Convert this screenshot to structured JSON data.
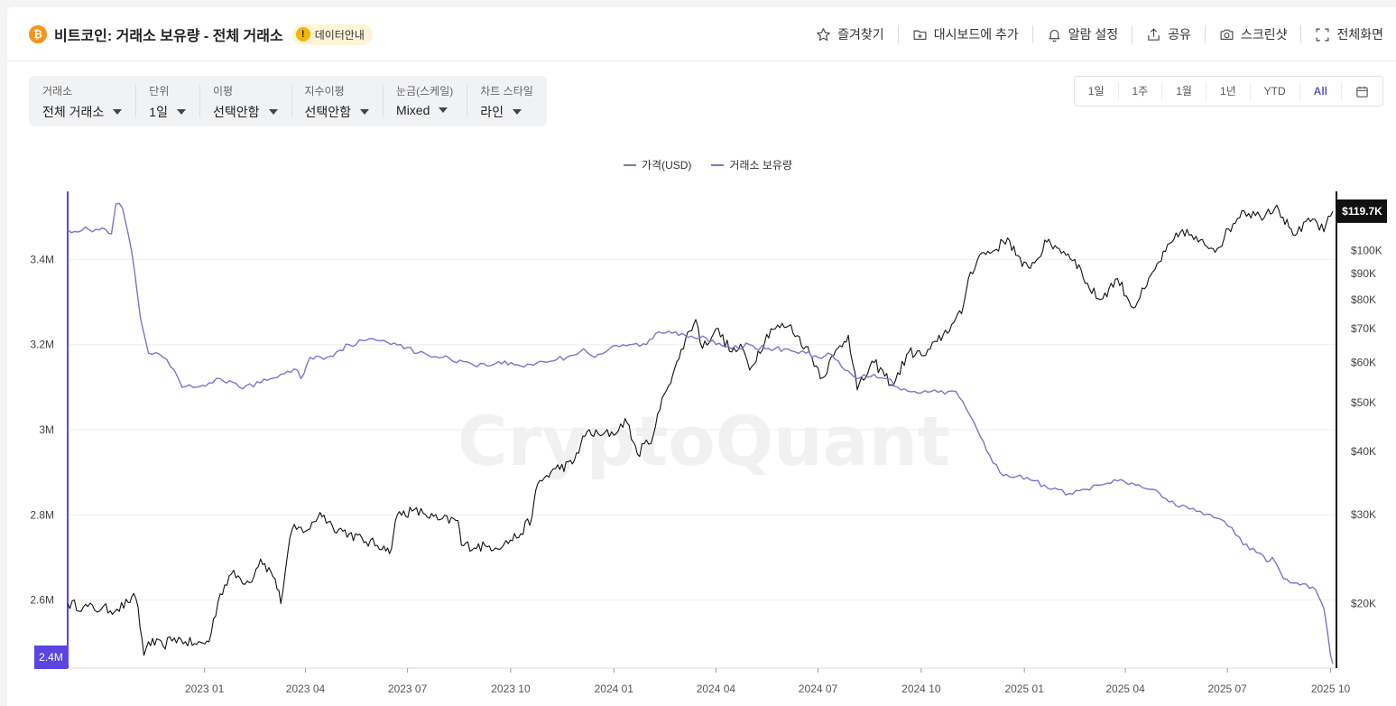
{
  "header": {
    "coin_icon": "bitcoin-icon",
    "title": "비트코인: 거래소 보유량 - 전체 거래소",
    "data_guide_label": "데이터안내",
    "actions": [
      {
        "label": "즐겨찾기",
        "icon": "star-icon"
      },
      {
        "label": "대시보드에 추가",
        "icon": "folder-plus-icon"
      },
      {
        "label": "알람 설정",
        "icon": "bell-icon"
      },
      {
        "label": "공유",
        "icon": "share-icon"
      },
      {
        "label": "스크린샷",
        "icon": "camera-icon"
      },
      {
        "label": "전체화면",
        "icon": "fullscreen-icon"
      }
    ]
  },
  "controls": [
    {
      "label": "거래소",
      "value": "전체 거래소"
    },
    {
      "label": "단위",
      "value": "1일"
    },
    {
      "label": "이평",
      "value": "선택안함"
    },
    {
      "label": "지수이평",
      "value": "선택안함"
    },
    {
      "label": "눈금(스케일)",
      "value": "Mixed"
    },
    {
      "label": "차트 스타일",
      "value": "라인"
    }
  ],
  "ranges": {
    "items": [
      "1일",
      "1주",
      "1월",
      "1년",
      "YTD",
      "All"
    ],
    "active": "All",
    "calendar_icon": "calendar-icon"
  },
  "legend": [
    {
      "label": "가격(USD)",
      "color": "#7b7f96"
    },
    {
      "label": "거래소 보유량",
      "color": "#7b74cc"
    }
  ],
  "watermark": "CryptoQuant",
  "colors": {
    "price": "#111111",
    "reserve": "#7b74cc",
    "left_axis": "#5b45e0",
    "right_axis": "#111111",
    "active_range": "#5b57d1"
  },
  "chart_data": {
    "type": "line",
    "x_tick_labels": [
      "2023 01",
      "2023 04",
      "2023 07",
      "2023 10",
      "2024 01",
      "2024 04",
      "2024 07",
      "2024 10",
      "2025 01",
      "2025 04",
      "2025 07",
      "2025 10"
    ],
    "x_range": [
      "2022-09-01",
      "2025-10-03"
    ],
    "left_axis": {
      "scale": "linear",
      "ticks": [
        "2.6M",
        "2.8M",
        "3M",
        "3.2M",
        "3.4M"
      ],
      "tick_values": [
        2600000,
        2800000,
        3000000,
        3200000,
        3400000
      ],
      "range": [
        2440000,
        3560000
      ],
      "current_label": "2.4M"
    },
    "right_axis": {
      "scale": "log",
      "ticks": [
        "$20K",
        "$30K",
        "$40K",
        "$50K",
        "$60K",
        "$70K",
        "$80K",
        "$90K",
        "$100K"
      ],
      "tick_values": [
        20000,
        30000,
        40000,
        50000,
        60000,
        70000,
        80000,
        90000,
        100000
      ],
      "range": [
        14900,
        131000
      ],
      "current_label": "$119.7K"
    },
    "series": [
      {
        "name": "거래소 보유량",
        "axis": "left",
        "points": [
          [
            "2022-09-01",
            3470000
          ],
          [
            "2022-09-20",
            3470000
          ],
          [
            "2022-10-05",
            3470000
          ],
          [
            "2022-10-10",
            3460000
          ],
          [
            "2022-10-14",
            3530000
          ],
          [
            "2022-10-20",
            3520000
          ],
          [
            "2022-10-28",
            3420000
          ],
          [
            "2022-11-05",
            3260000
          ],
          [
            "2022-11-12",
            3180000
          ],
          [
            "2022-11-25",
            3170000
          ],
          [
            "2022-12-05",
            3140000
          ],
          [
            "2022-12-12",
            3100000
          ],
          [
            "2022-12-25",
            3100000
          ],
          [
            "2023-01-05",
            3110000
          ],
          [
            "2023-01-15",
            3120000
          ],
          [
            "2023-02-01",
            3100000
          ],
          [
            "2023-02-20",
            3110000
          ],
          [
            "2023-03-10",
            3130000
          ],
          [
            "2023-03-25",
            3140000
          ],
          [
            "2023-03-28",
            3120000
          ],
          [
            "2023-04-05",
            3170000
          ],
          [
            "2023-04-20",
            3170000
          ],
          [
            "2023-05-10",
            3200000
          ],
          [
            "2023-05-25",
            3210000
          ],
          [
            "2023-06-10",
            3210000
          ],
          [
            "2023-06-25",
            3200000
          ],
          [
            "2023-07-10",
            3180000
          ],
          [
            "2023-08-01",
            3170000
          ],
          [
            "2023-08-20",
            3160000
          ],
          [
            "2023-09-10",
            3150000
          ],
          [
            "2023-09-20",
            3160000
          ],
          [
            "2023-10-10",
            3150000
          ],
          [
            "2023-10-30",
            3160000
          ],
          [
            "2023-11-20",
            3170000
          ],
          [
            "2023-12-05",
            3190000
          ],
          [
            "2023-12-15",
            3170000
          ],
          [
            "2023-12-28",
            3190000
          ],
          [
            "2024-01-15",
            3200000
          ],
          [
            "2024-01-30",
            3200000
          ],
          [
            "2024-02-10",
            3230000
          ],
          [
            "2024-02-25",
            3230000
          ],
          [
            "2024-03-10",
            3220000
          ],
          [
            "2024-03-20",
            3220000
          ],
          [
            "2024-04-01",
            3200000
          ],
          [
            "2024-04-15",
            3190000
          ],
          [
            "2024-05-01",
            3200000
          ],
          [
            "2024-05-15",
            3190000
          ],
          [
            "2024-06-01",
            3190000
          ],
          [
            "2024-06-20",
            3180000
          ],
          [
            "2024-07-01",
            3170000
          ],
          [
            "2024-07-10",
            3180000
          ],
          [
            "2024-07-25",
            3140000
          ],
          [
            "2024-08-05",
            3120000
          ],
          [
            "2024-08-20",
            3130000
          ],
          [
            "2024-09-01",
            3120000
          ],
          [
            "2024-09-10",
            3100000
          ],
          [
            "2024-09-25",
            3090000
          ],
          [
            "2024-10-10",
            3090000
          ],
          [
            "2024-10-25",
            3090000
          ],
          [
            "2024-11-01",
            3090000
          ],
          [
            "2024-11-10",
            3050000
          ],
          [
            "2024-11-20",
            3000000
          ],
          [
            "2024-12-01",
            2940000
          ],
          [
            "2024-12-10",
            2900000
          ],
          [
            "2024-12-25",
            2890000
          ],
          [
            "2025-01-10",
            2880000
          ],
          [
            "2025-01-25",
            2860000
          ],
          [
            "2025-02-10",
            2850000
          ],
          [
            "2025-02-25",
            2860000
          ],
          [
            "2025-03-10",
            2870000
          ],
          [
            "2025-03-25",
            2880000
          ],
          [
            "2025-04-10",
            2870000
          ],
          [
            "2025-04-25",
            2860000
          ],
          [
            "2025-05-10",
            2830000
          ],
          [
            "2025-05-25",
            2820000
          ],
          [
            "2025-06-10",
            2800000
          ],
          [
            "2025-06-25",
            2790000
          ],
          [
            "2025-07-05",
            2770000
          ],
          [
            "2025-07-15",
            2730000
          ],
          [
            "2025-07-30",
            2710000
          ],
          [
            "2025-08-05",
            2690000
          ],
          [
            "2025-08-10",
            2700000
          ],
          [
            "2025-08-20",
            2650000
          ],
          [
            "2025-09-01",
            2640000
          ],
          [
            "2025-09-15",
            2630000
          ],
          [
            "2025-09-20",
            2610000
          ],
          [
            "2025-09-25",
            2580000
          ],
          [
            "2025-10-01",
            2470000
          ],
          [
            "2025-10-03",
            2450000
          ]
        ]
      },
      {
        "name": "가격(USD)",
        "axis": "right",
        "points": [
          [
            "2022-09-01",
            20000
          ],
          [
            "2022-09-15",
            19700
          ],
          [
            "2022-10-01",
            19500
          ],
          [
            "2022-10-15",
            19500
          ],
          [
            "2022-10-25",
            20100
          ],
          [
            "2022-10-28",
            20600
          ],
          [
            "2022-11-01",
            20400
          ],
          [
            "2022-11-08",
            15800
          ],
          [
            "2022-11-12",
            16800
          ],
          [
            "2022-11-25",
            16500
          ],
          [
            "2022-12-05",
            17100
          ],
          [
            "2022-12-15",
            16800
          ],
          [
            "2022-12-25",
            16600
          ],
          [
            "2023-01-05",
            16800
          ],
          [
            "2023-01-15",
            20900
          ],
          [
            "2023-01-25",
            22900
          ],
          [
            "2023-02-10",
            22000
          ],
          [
            "2023-02-20",
            24500
          ],
          [
            "2023-03-05",
            22400
          ],
          [
            "2023-03-10",
            20000
          ],
          [
            "2023-03-20",
            28000
          ],
          [
            "2023-04-05",
            28100
          ],
          [
            "2023-04-14",
            30300
          ],
          [
            "2023-04-25",
            28500
          ],
          [
            "2023-05-10",
            27500
          ],
          [
            "2023-05-25",
            26500
          ],
          [
            "2023-06-10",
            26000
          ],
          [
            "2023-06-15",
            25100
          ],
          [
            "2023-06-22",
            30000
          ],
          [
            "2023-07-05",
            30500
          ],
          [
            "2023-07-15",
            30200
          ],
          [
            "2023-07-28",
            29300
          ],
          [
            "2023-08-15",
            29200
          ],
          [
            "2023-08-18",
            26100
          ],
          [
            "2023-09-10",
            25900
          ],
          [
            "2023-09-25",
            26200
          ],
          [
            "2023-10-10",
            27500
          ],
          [
            "2023-10-20",
            29700
          ],
          [
            "2023-10-25",
            34500
          ],
          [
            "2023-11-10",
            37000
          ],
          [
            "2023-11-25",
            37800
          ],
          [
            "2023-12-08",
            43800
          ],
          [
            "2023-12-20",
            43000
          ],
          [
            "2024-01-05",
            44000
          ],
          [
            "2024-01-11",
            46500
          ],
          [
            "2024-01-22",
            39500
          ],
          [
            "2024-02-05",
            43000
          ],
          [
            "2024-02-15",
            52000
          ],
          [
            "2024-02-28",
            61000
          ],
          [
            "2024-03-05",
            67000
          ],
          [
            "2024-03-14",
            73000
          ],
          [
            "2024-03-20",
            64000
          ],
          [
            "2024-04-01",
            70000
          ],
          [
            "2024-04-15",
            63000
          ],
          [
            "2024-04-25",
            64000
          ],
          [
            "2024-05-01",
            58000
          ],
          [
            "2024-05-20",
            70000
          ],
          [
            "2024-06-05",
            71000
          ],
          [
            "2024-06-20",
            64500
          ],
          [
            "2024-07-05",
            56000
          ],
          [
            "2024-07-15",
            62000
          ],
          [
            "2024-07-28",
            68000
          ],
          [
            "2024-08-05",
            53000
          ],
          [
            "2024-08-20",
            60000
          ],
          [
            "2024-09-06",
            54000
          ],
          [
            "2024-09-20",
            63000
          ],
          [
            "2024-10-05",
            62000
          ],
          [
            "2024-10-15",
            66000
          ],
          [
            "2024-10-30",
            72000
          ],
          [
            "2024-11-06",
            75000
          ],
          [
            "2024-11-12",
            88000
          ],
          [
            "2024-11-22",
            98000
          ],
          [
            "2024-12-05",
            100000
          ],
          [
            "2024-12-17",
            106000
          ],
          [
            "2024-12-30",
            93000
          ],
          [
            "2025-01-10",
            94500
          ],
          [
            "2025-01-21",
            104000
          ],
          [
            "2025-02-01",
            101000
          ],
          [
            "2025-02-15",
            96000
          ],
          [
            "2025-02-28",
            84000
          ],
          [
            "2025-03-10",
            80000
          ],
          [
            "2025-03-25",
            88000
          ],
          [
            "2025-04-08",
            77000
          ],
          [
            "2025-04-20",
            85000
          ],
          [
            "2025-05-01",
            95000
          ],
          [
            "2025-05-22",
            110000
          ],
          [
            "2025-06-05",
            104000
          ],
          [
            "2025-06-22",
            101000
          ],
          [
            "2025-07-14",
            120000
          ],
          [
            "2025-07-30",
            117000
          ],
          [
            "2025-08-14",
            123000
          ],
          [
            "2025-08-25",
            111000
          ],
          [
            "2025-09-01",
            108000
          ],
          [
            "2025-09-15",
            115500
          ],
          [
            "2025-09-25",
            109000
          ],
          [
            "2025-10-03",
            119700
          ]
        ]
      }
    ]
  }
}
